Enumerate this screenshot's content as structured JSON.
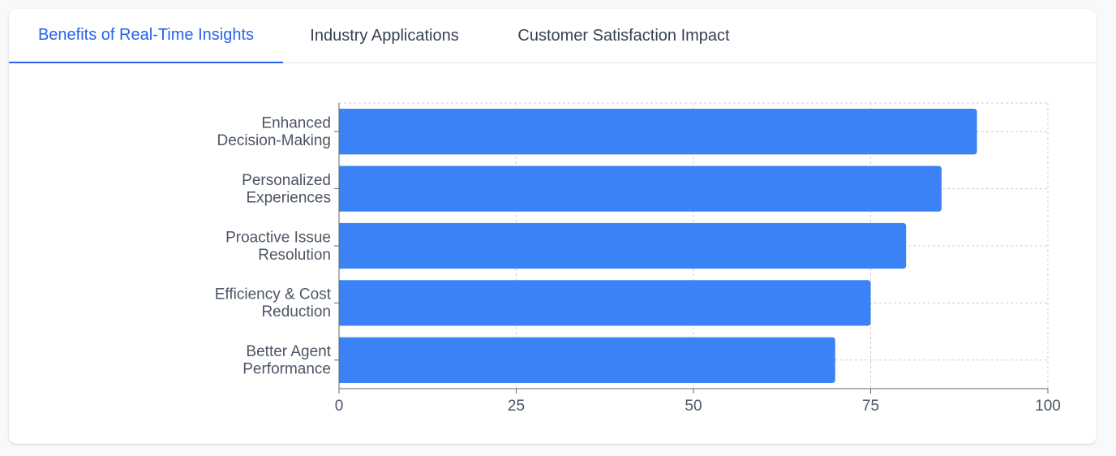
{
  "tabs": [
    {
      "label": "Benefits of Real-Time Insights",
      "active": true
    },
    {
      "label": "Industry Applications",
      "active": false
    },
    {
      "label": "Customer Satisfaction Impact",
      "active": false
    }
  ],
  "colors": {
    "accent": "#2563eb",
    "bar": "#3b82f6",
    "grid": "#cccccc",
    "axis": "#666666",
    "text": "#4b5563"
  },
  "chart_data": {
    "type": "bar",
    "orientation": "horizontal",
    "categories": [
      [
        "Enhanced",
        "Decision-Making"
      ],
      [
        "Personalized",
        "Experiences"
      ],
      [
        "Proactive Issue",
        "Resolution"
      ],
      [
        "Efficiency & Cost",
        "Reduction"
      ],
      [
        "Better Agent",
        "Performance"
      ]
    ],
    "values": [
      90,
      85,
      80,
      75,
      70
    ],
    "xlim": [
      0,
      100
    ],
    "xticks": [
      0,
      25,
      50,
      75,
      100
    ],
    "grid": true
  }
}
